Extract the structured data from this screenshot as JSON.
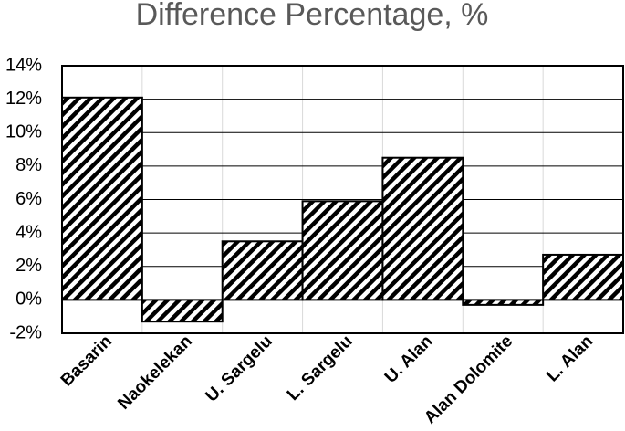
{
  "chart_data": {
    "type": "bar",
    "title": "Difference Percentage, %",
    "categories": [
      "Basarin",
      "Naokelekan",
      "U. Sargelu",
      "L. Sargelu",
      "U. Alan",
      "Alan Dolomite",
      "L. Alan"
    ],
    "values": [
      12.1,
      -1.3,
      3.5,
      5.9,
      8.5,
      -0.3,
      2.7
    ],
    "color": "#000000",
    "ylim": [
      -2,
      14
    ],
    "yticks": [
      {
        "value": -2,
        "label": "-2%"
      },
      {
        "value": 0,
        "label": "0%"
      },
      {
        "value": 2,
        "label": "2%"
      },
      {
        "value": 4,
        "label": "4%"
      },
      {
        "value": 6,
        "label": "6%"
      },
      {
        "value": 8,
        "label": "8%"
      },
      {
        "value": 10,
        "label": "10%"
      },
      {
        "value": 12,
        "label": "12%"
      },
      {
        "value": 14,
        "label": "14%"
      }
    ],
    "grid": true
  }
}
